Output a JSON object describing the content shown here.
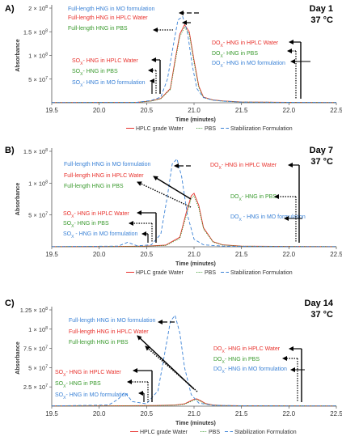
{
  "figure": {
    "legend_items": [
      {
        "label": "HPLC grade Water",
        "color": "#e8312c",
        "dash": "solid"
      },
      {
        "label": "PBS",
        "color": "#3a9a2e",
        "dash": "dot"
      },
      {
        "label": "Stabilization Formulation",
        "color": "#3b82d6",
        "dash": "dash"
      }
    ],
    "colors": {
      "water": "#e8312c",
      "pbs": "#3a9a2e",
      "mo": "#3b82d6",
      "axis": "#333333"
    }
  },
  "chart_data": [
    {
      "type": "line",
      "panel_label": "A)",
      "day": "Day 1",
      "temp": "37 °C",
      "ylabel": "Absorbance",
      "xlabel": "Time (minutes)",
      "xlim": [
        19.5,
        22.5
      ],
      "ylim": [
        0,
        2000000
      ],
      "xticks": [
        "19.5",
        "20.0",
        "20.5",
        "21.0",
        "21.5",
        "22.0",
        "22.5"
      ],
      "yticks": [
        {
          "base": "5 × 10",
          "exp": "7",
          "value": 500000
        },
        {
          "base": "1 × 10",
          "exp": "8",
          "value": 1000000
        },
        {
          "base": "1.5 × 10",
          "exp": "8",
          "value": 1500000
        },
        {
          "base": "2 × 10",
          "exp": "8",
          "value": 2000000
        }
      ],
      "series": [
        {
          "name": "HPLC grade Water",
          "x": [
            19.5,
            20.4,
            20.55,
            20.65,
            20.75,
            20.8,
            20.85,
            20.9,
            20.95,
            21.0,
            21.05,
            21.1,
            21.2,
            21.3,
            21.5,
            22.0,
            22.5
          ],
          "y": [
            5000,
            8000,
            40000,
            90000,
            300000,
            900000,
            1450000,
            1650000,
            1500000,
            900000,
            350000,
            120000,
            60000,
            40000,
            15000,
            8000,
            5000
          ]
        },
        {
          "name": "PBS",
          "x": [
            19.5,
            20.4,
            20.55,
            20.65,
            20.75,
            20.8,
            20.85,
            20.9,
            20.95,
            21.0,
            21.05,
            21.1,
            21.2,
            21.3,
            21.5,
            22.0,
            22.5
          ],
          "y": [
            5000,
            8000,
            35000,
            85000,
            280000,
            850000,
            1400000,
            1600000,
            1450000,
            850000,
            320000,
            110000,
            55000,
            35000,
            14000,
            8000,
            5000
          ]
        },
        {
          "name": "Stabilization Formulation",
          "x": [
            19.5,
            20.4,
            20.55,
            20.65,
            20.72,
            20.78,
            20.83,
            20.88,
            20.93,
            20.98,
            21.03,
            21.1,
            21.2,
            21.3,
            21.5,
            22.0,
            22.5
          ],
          "y": [
            5000,
            8000,
            50000,
            120000,
            500000,
            1200000,
            1750000,
            1820000,
            1500000,
            800000,
            300000,
            110000,
            55000,
            35000,
            14000,
            8000,
            5000
          ]
        }
      ],
      "annotations": [
        {
          "text": "Full-length HNG in MO formulation",
          "color": "#3b82d6"
        },
        {
          "text": "Full-length  HNG in HPLC Water",
          "color": "#e8312c"
        },
        {
          "text": "Full-length HNG in PBS",
          "color": "#3a9a2e"
        },
        {
          "text": "DOX- HNG in HPLC Water",
          "color": "#e8312c",
          "prefix": "DO",
          "sub": "X",
          "suffix": "- HNG in HPLC Water"
        },
        {
          "text": "DOX- HNG in PBS",
          "color": "#3a9a2e",
          "prefix": "DO",
          "sub": "X",
          "suffix": "- HNG in PBS"
        },
        {
          "text": "DOX- HNG in MO formulation",
          "color": "#3b82d6",
          "prefix": "DO",
          "sub": "X",
          "suffix": "- HNG in MO formulation"
        },
        {
          "text": "SOX- HNG in HPLC Water",
          "color": "#e8312c",
          "prefix": "SO",
          "sub": "X",
          "suffix": "- HNG in HPLC Water"
        },
        {
          "text": "SOX- HNG in PBS",
          "color": "#3a9a2e",
          "prefix": "SO",
          "sub": "X",
          "suffix": "- HNG in PBS"
        },
        {
          "text": "SOX- HNG in MO formulation",
          "color": "#3b82d6",
          "prefix": "SO",
          "sub": "X",
          "suffix": "- HNG in MO formulation"
        }
      ]
    },
    {
      "type": "line",
      "panel_label": "B)",
      "day": "Day 7",
      "temp": "37 °C",
      "ylabel": "Absorbance",
      "xlabel": "Time (minutes)",
      "xlim": [
        19.5,
        22.5
      ],
      "ylim": [
        0,
        1500000
      ],
      "xticks": [
        "19.5",
        "20.0",
        "20.5",
        "21.0",
        "21.5",
        "22.0",
        "22.5"
      ],
      "yticks": [
        {
          "base": "5 × 10",
          "exp": "7",
          "value": 500000
        },
        {
          "base": "1 × 10",
          "exp": "8",
          "value": 1000000
        },
        {
          "base": "1.5 × 10",
          "exp": "8",
          "value": 1500000
        }
      ],
      "series": [
        {
          "name": "HPLC grade Water",
          "x": [
            19.5,
            20.2,
            20.5,
            20.7,
            20.85,
            20.92,
            20.97,
            21.0,
            21.05,
            21.1,
            21.2,
            21.3,
            21.5,
            22.0,
            22.5
          ],
          "y": [
            3000,
            5000,
            10000,
            25000,
            150000,
            550000,
            800000,
            840000,
            650000,
            300000,
            80000,
            30000,
            10000,
            5000,
            3000
          ]
        },
        {
          "name": "PBS",
          "x": [
            19.5,
            20.2,
            20.5,
            20.7,
            20.85,
            20.92,
            20.97,
            21.0,
            21.05,
            21.1,
            21.2,
            21.3,
            21.5,
            22.0,
            22.5
          ],
          "y": [
            3000,
            5000,
            9000,
            20000,
            130000,
            500000,
            760000,
            800000,
            610000,
            280000,
            75000,
            28000,
            9000,
            5000,
            3000
          ]
        },
        {
          "name": "Stabilization Formulation",
          "x": [
            19.5,
            20.2,
            20.3,
            20.4,
            20.55,
            20.65,
            20.72,
            20.77,
            20.82,
            20.87,
            20.93,
            21.0,
            21.1,
            21.3,
            21.5,
            22.0,
            22.5
          ],
          "y": [
            3000,
            10000,
            70000,
            15000,
            30000,
            200000,
            800000,
            1300000,
            1380000,
            1100000,
            500000,
            120000,
            30000,
            10000,
            5000,
            3000,
            3000
          ]
        }
      ],
      "annotations": [
        {
          "text": "Full-length HNG in MO formulation",
          "color": "#3b82d6"
        },
        {
          "text": "Full-length  HNG in HPLC Water",
          "color": "#e8312c"
        },
        {
          "text": "Full-length HNG in PBS",
          "color": "#3a9a2e"
        },
        {
          "text": "DOX- HNG in HPLC Water",
          "color": "#e8312c",
          "prefix": "DO",
          "sub": "X",
          "suffix": "- HNG in HPLC Water"
        },
        {
          "text": "DOX- HNG in PBS",
          "color": "#3a9a2e",
          "prefix": "DO",
          "sub": "X",
          "suffix": "- HNG in PBS"
        },
        {
          "text": "DOX - HNG in MO formulation",
          "color": "#3b82d6",
          "prefix": "DO",
          "sub": "X",
          "suffix": " - HNG in MO formulation"
        },
        {
          "text": "SOX- HNG in HPLC Water",
          "color": "#e8312c",
          "prefix": "SO",
          "sub": "X",
          "suffix": "- HNG in HPLC Water"
        },
        {
          "text": "SOX- HNG in PBS",
          "color": "#3a9a2e",
          "prefix": "SO",
          "sub": "X",
          "suffix": "- HNG in PBS"
        },
        {
          "text": "SOX - HNG in MO formulation",
          "color": "#3b82d6",
          "prefix": "SO",
          "sub": "X",
          "suffix": " - HNG in MO formulation"
        }
      ]
    },
    {
      "type": "line",
      "panel_label": "C)",
      "day": "Day 14",
      "temp": "37 °C",
      "ylabel": "Absorbance",
      "xlabel": "Time (minutes)",
      "xlim": [
        19.5,
        22.5
      ],
      "ylim": [
        0,
        1250000
      ],
      "xticks": [
        "19.5",
        "20.0",
        "20.5",
        "21.0",
        "21.5",
        "22.0",
        "22.5"
      ],
      "yticks": [
        {
          "base": "2.5 × 10",
          "exp": "7",
          "value": 250000
        },
        {
          "base": "5 × 10",
          "exp": "7",
          "value": 500000
        },
        {
          "base": "7.5 × 10",
          "exp": "7",
          "value": 750000
        },
        {
          "base": "1 × 10",
          "exp": "8",
          "value": 1000000
        },
        {
          "base": "1.25 × 10",
          "exp": "8",
          "value": 1250000
        }
      ],
      "series": [
        {
          "name": "HPLC grade Water",
          "x": [
            19.5,
            20.3,
            20.6,
            20.8,
            20.9,
            20.95,
            21.0,
            21.03,
            21.07,
            21.12,
            21.2,
            21.3,
            21.5,
            22.0,
            22.5
          ],
          "y": [
            3000,
            5000,
            8000,
            15000,
            30000,
            60000,
            90000,
            95000,
            70000,
            35000,
            15000,
            8000,
            5000,
            4000,
            3000
          ]
        },
        {
          "name": "PBS",
          "x": [
            19.5,
            20.3,
            20.6,
            20.8,
            20.9,
            20.95,
            21.0,
            21.03,
            21.07,
            21.12,
            21.2,
            21.3,
            21.5,
            22.0,
            22.5
          ],
          "y": [
            3000,
            5000,
            7000,
            13000,
            25000,
            50000,
            80000,
            85000,
            62000,
            30000,
            13000,
            7000,
            5000,
            4000,
            3000
          ]
        },
        {
          "name": "Stabilization Formulation",
          "x": [
            19.5,
            20.1,
            20.2,
            20.27,
            20.35,
            20.5,
            20.62,
            20.7,
            20.75,
            20.8,
            20.85,
            20.9,
            20.97,
            21.05,
            21.2,
            21.5,
            22.0,
            22.5
          ],
          "y": [
            3000,
            15000,
            90000,
            180000,
            60000,
            30000,
            200000,
            750000,
            1100000,
            1180000,
            950000,
            500000,
            150000,
            40000,
            10000,
            5000,
            3000,
            3000
          ]
        }
      ],
      "annotations": [
        {
          "text": "Full-length HNG in MO formulation",
          "color": "#3b82d6"
        },
        {
          "text": "Full-length  HNG in HPLC Water",
          "color": "#e8312c"
        },
        {
          "text": "Full-length HNG in PBS",
          "color": "#3a9a2e"
        },
        {
          "text": "DOX- HNG in HPLC Water",
          "color": "#e8312c",
          "prefix": "DO",
          "sub": "X",
          "suffix": "- HNG in HPLC Water"
        },
        {
          "text": "DOX- HNG in PBS",
          "color": "#3a9a2e",
          "prefix": "DO",
          "sub": "X",
          "suffix": "- HNG in PBS"
        },
        {
          "text": "DOX- HNG in MO formulation",
          "color": "#3b82d6",
          "prefix": "DO",
          "sub": "X",
          "suffix": "- HNG in MO formulation"
        },
        {
          "text": "SOX- HNG in HPLC Water",
          "color": "#e8312c",
          "prefix": "SO",
          "sub": "X",
          "suffix": "- HNG in HPLC Water"
        },
        {
          "text": "SOX- HNG in PBS",
          "color": "#3a9a2e",
          "prefix": "SO",
          "sub": "X",
          "suffix": "- HNG in PBS"
        },
        {
          "text": "SOX- HNG in MO formulation",
          "color": "#3b82d6",
          "prefix": "SO",
          "sub": "X",
          "suffix": "- HNG in MO formulation"
        }
      ]
    }
  ]
}
